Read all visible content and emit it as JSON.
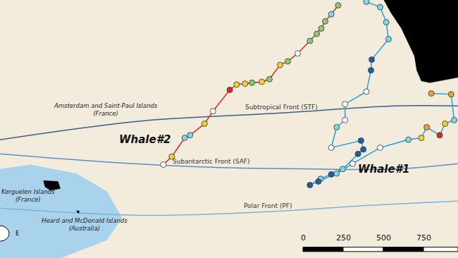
{
  "chart_data": {
    "type": "map",
    "xlim": [
      62,
      122
    ],
    "ylim": [
      -57,
      -28
    ],
    "grid": false,
    "tick_labels": false,
    "shallow": [
      {
        "color": "#a9d3ec",
        "x": [
          62,
          66,
          72,
          76,
          78,
          76,
          70,
          62
        ],
        "y": [
          -47,
          -46.5,
          -47.5,
          -49.5,
          -52.5,
          -55,
          -57,
          -57
        ]
      }
    ],
    "land": [
      {
        "color": "#000000",
        "x": [
          112.3,
          122,
          122,
          118.3,
          117.2,
          116.6,
          116.3,
          115.5,
          114.6,
          113.2,
          112.3
        ],
        "y": [
          -28,
          -28,
          -36.7,
          -37.3,
          -37.1,
          -35.9,
          -34.3,
          -32.8,
          -31.2,
          -29.4,
          -28
        ]
      },
      {
        "color": "#000000",
        "x": [
          67.7,
          69.6,
          69.9,
          68.6,
          67.9,
          67.7
        ],
        "y": [
          -48.3,
          -48.4,
          -49.2,
          -49.4,
          -49.0,
          -48.3
        ]
      },
      {
        "color": "#000000",
        "x": [
          72.0,
          72.4,
          72.3,
          72.0
        ],
        "y": [
          -51.7,
          -51.7,
          -52.0,
          -51.7
        ]
      }
    ],
    "fronts": [
      {
        "label": "Subtropical Front (STF)",
        "color": "#3b5f8a",
        "x": [
          62,
          80.5,
          98.9,
          113.7,
          122
        ],
        "y": [
          -43.7,
          -41.6,
          -40.7,
          -39.9,
          -39.9
        ]
      },
      {
        "label": "Subantarctic Front (SAF)",
        "color": "#5b8fc0",
        "x": [
          62,
          75.8,
          89.7,
          103.5,
          113.7,
          122
        ],
        "y": [
          -45.3,
          -46.2,
          -46.8,
          -47.0,
          -47.0,
          -46.4
        ]
      },
      {
        "label": "Polar Front (PF)",
        "color": "#7fb0d8",
        "x": [
          62,
          80.5,
          97.1,
          110,
          122
        ],
        "y": [
          -51.4,
          -52.2,
          -51.8,
          -51.1,
          -50.6
        ]
      }
    ],
    "places": [
      {
        "lines": [
          "Amsterdam and Saint-Paul Islands",
          "(France)"
        ],
        "x": 75.8,
        "y": -40.3
      },
      {
        "lines": [
          "Kerguelen Islands",
          "(France)"
        ],
        "x": 65.7,
        "y": -50.0
      },
      {
        "lines": [
          "Heard and McDonald Islands",
          "(Australia)"
        ],
        "x": 73.1,
        "y": -53.2
      }
    ],
    "series": [
      {
        "name": "Whale#2",
        "color": "#e0302a",
        "label_x": 81.0,
        "label_y": -43.7,
        "x": [
          83.4,
          84.5,
          86.2,
          86.9,
          88.8,
          89.9,
          92.1,
          93.0,
          94.1,
          95.0,
          96.3,
          97.3,
          98.7,
          99.7,
          101.0,
          102.6,
          103.5,
          104.1,
          104.6,
          105.4,
          106.3
        ],
        "y": [
          -46.5,
          -45.6,
          -43.5,
          -43.2,
          -41.9,
          -40.5,
          -38.1,
          -37.5,
          -37.4,
          -37.3,
          -37.2,
          -36.9,
          -35.3,
          -34.9,
          -34.0,
          -32.6,
          -31.8,
          -31.2,
          -30.4,
          -29.6,
          -28.6
        ],
        "colors": [
          "#ffffff",
          "#f2d22a",
          "#7fd8ea",
          "#7fd8ea",
          "#f2d22a",
          "#ffffff",
          "#d82a1e",
          "#f2d22a",
          "#f2d22a",
          "#8ccc6c",
          "#f2d22a",
          "#8ccc6c",
          "#f2d22a",
          "#8ccc6c",
          "#ffffff",
          "#8ccc6c",
          "#8ccc6c",
          "#8ccc6c",
          "#8ccc6c",
          "#7fd8ea",
          "#8ccc6c"
        ]
      },
      {
        "name": "Whale#1",
        "color": "#29a8e0",
        "label_x": 112.3,
        "label_y": -47.0,
        "x": [
          110.0,
          111.8,
          112.6,
          112.9,
          110.7,
          110.6,
          110.0,
          107.2,
          107.2,
          106.1,
          105.4,
          109.3,
          109.6,
          108.9,
          106.9,
          105.4,
          104.0,
          102.6,
          103.7,
          106.1,
          108.2,
          111.8,
          115.5,
          117.2,
          117.9,
          119.6,
          120.3,
          121.5,
          121.1,
          118.5
        ],
        "y": [
          -28.2,
          -28.8,
          -30.5,
          -32.4,
          -34.7,
          -35.9,
          -38.3,
          -39.7,
          -41.5,
          -42.3,
          -44.6,
          -43.8,
          -44.8,
          -45.3,
          -47.0,
          -47.6,
          -48.1,
          -48.8,
          -48.4,
          -47.5,
          -46.4,
          -44.6,
          -43.7,
          -43.5,
          -42.3,
          -43.2,
          -41.9,
          -41.5,
          -38.6,
          -38.5
        ],
        "colors": [
          "#7fd8ea",
          "#7fd8ea",
          "#7fd8ea",
          "#7fd8ea",
          "#1f5fa8",
          "#1f5fa8",
          "#ffffff",
          "#ffffff",
          "#ffffff",
          "#7fd8ea",
          "#ffffff",
          "#1f5fa8",
          "#1f5fa8",
          "#1f5fa8",
          "#7fd8ea",
          "#1f5fa8",
          "#7fd8ea",
          "#1f5fa8",
          "#1f5fa8",
          "#7fd8ea",
          "#ffffff",
          "#ffffff",
          "#7fd8ea",
          "#f2d22a",
          "#f0a030",
          "#d82a1e",
          "#f2d22a",
          "#7fd8ea",
          "#f0a030",
          "#f0a030"
        ]
      }
    ],
    "scale_bar": {
      "ticks": [
        0,
        250,
        500,
        750
      ]
    },
    "compass": "E"
  }
}
